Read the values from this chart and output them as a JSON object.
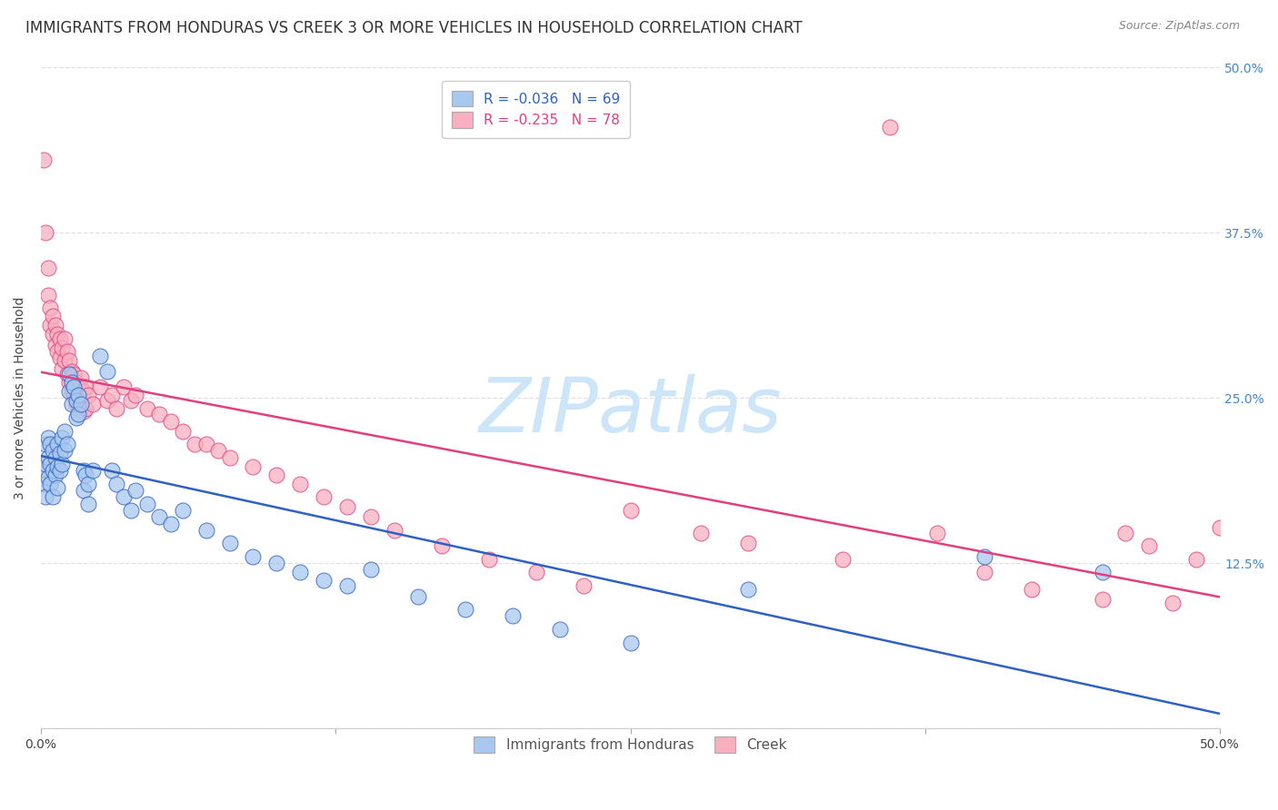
{
  "title": "IMMIGRANTS FROM HONDURAS VS CREEK 3 OR MORE VEHICLES IN HOUSEHOLD CORRELATION CHART",
  "source": "Source: ZipAtlas.com",
  "ylabel": "3 or more Vehicles in Household",
  "xlim": [
    0.0,
    0.5
  ],
  "ylim": [
    0.0,
    0.5
  ],
  "legend_label1": "R = -0.036   N = 69",
  "legend_label2": "R = -0.235   N = 78",
  "legend_bottom1": "Immigrants from Honduras",
  "legend_bottom2": "Creek",
  "color_blue": "#a8c8f0",
  "color_pink": "#f8b0c0",
  "line_blue": "#3060c0",
  "line_pink": "#e04080",
  "blue_points": [
    [
      0.001,
      0.195
    ],
    [
      0.001,
      0.185
    ],
    [
      0.002,
      0.215
    ],
    [
      0.002,
      0.2
    ],
    [
      0.002,
      0.175
    ],
    [
      0.003,
      0.22
    ],
    [
      0.003,
      0.205
    ],
    [
      0.003,
      0.19
    ],
    [
      0.004,
      0.215
    ],
    [
      0.004,
      0.2
    ],
    [
      0.004,
      0.185
    ],
    [
      0.005,
      0.21
    ],
    [
      0.005,
      0.195
    ],
    [
      0.005,
      0.175
    ],
    [
      0.006,
      0.205
    ],
    [
      0.006,
      0.192
    ],
    [
      0.007,
      0.215
    ],
    [
      0.007,
      0.198
    ],
    [
      0.007,
      0.182
    ],
    [
      0.008,
      0.208
    ],
    [
      0.008,
      0.195
    ],
    [
      0.009,
      0.22
    ],
    [
      0.009,
      0.2
    ],
    [
      0.01,
      0.225
    ],
    [
      0.01,
      0.21
    ],
    [
      0.011,
      0.215
    ],
    [
      0.012,
      0.268
    ],
    [
      0.012,
      0.255
    ],
    [
      0.013,
      0.262
    ],
    [
      0.013,
      0.245
    ],
    [
      0.014,
      0.258
    ],
    [
      0.015,
      0.248
    ],
    [
      0.015,
      0.235
    ],
    [
      0.016,
      0.252
    ],
    [
      0.016,
      0.238
    ],
    [
      0.017,
      0.245
    ],
    [
      0.018,
      0.195
    ],
    [
      0.018,
      0.18
    ],
    [
      0.019,
      0.192
    ],
    [
      0.02,
      0.185
    ],
    [
      0.02,
      0.17
    ],
    [
      0.022,
      0.195
    ],
    [
      0.025,
      0.282
    ],
    [
      0.028,
      0.27
    ],
    [
      0.03,
      0.195
    ],
    [
      0.032,
      0.185
    ],
    [
      0.035,
      0.175
    ],
    [
      0.038,
      0.165
    ],
    [
      0.04,
      0.18
    ],
    [
      0.045,
      0.17
    ],
    [
      0.05,
      0.16
    ],
    [
      0.055,
      0.155
    ],
    [
      0.06,
      0.165
    ],
    [
      0.07,
      0.15
    ],
    [
      0.08,
      0.14
    ],
    [
      0.09,
      0.13
    ],
    [
      0.1,
      0.125
    ],
    [
      0.11,
      0.118
    ],
    [
      0.12,
      0.112
    ],
    [
      0.13,
      0.108
    ],
    [
      0.14,
      0.12
    ],
    [
      0.16,
      0.1
    ],
    [
      0.18,
      0.09
    ],
    [
      0.2,
      0.085
    ],
    [
      0.22,
      0.075
    ],
    [
      0.25,
      0.065
    ],
    [
      0.3,
      0.105
    ],
    [
      0.4,
      0.13
    ],
    [
      0.45,
      0.118
    ]
  ],
  "pink_points": [
    [
      0.001,
      0.43
    ],
    [
      0.002,
      0.375
    ],
    [
      0.003,
      0.348
    ],
    [
      0.003,
      0.328
    ],
    [
      0.004,
      0.318
    ],
    [
      0.004,
      0.305
    ],
    [
      0.005,
      0.312
    ],
    [
      0.005,
      0.298
    ],
    [
      0.006,
      0.305
    ],
    [
      0.006,
      0.29
    ],
    [
      0.007,
      0.298
    ],
    [
      0.007,
      0.285
    ],
    [
      0.008,
      0.295
    ],
    [
      0.008,
      0.28
    ],
    [
      0.009,
      0.288
    ],
    [
      0.009,
      0.272
    ],
    [
      0.01,
      0.295
    ],
    [
      0.01,
      0.278
    ],
    [
      0.011,
      0.285
    ],
    [
      0.011,
      0.268
    ],
    [
      0.012,
      0.278
    ],
    [
      0.012,
      0.262
    ],
    [
      0.013,
      0.27
    ],
    [
      0.013,
      0.255
    ],
    [
      0.014,
      0.268
    ],
    [
      0.014,
      0.252
    ],
    [
      0.015,
      0.262
    ],
    [
      0.015,
      0.245
    ],
    [
      0.016,
      0.258
    ],
    [
      0.016,
      0.242
    ],
    [
      0.017,
      0.265
    ],
    [
      0.017,
      0.248
    ],
    [
      0.018,
      0.255
    ],
    [
      0.018,
      0.24
    ],
    [
      0.019,
      0.258
    ],
    [
      0.019,
      0.242
    ],
    [
      0.02,
      0.252
    ],
    [
      0.022,
      0.245
    ],
    [
      0.025,
      0.258
    ],
    [
      0.028,
      0.248
    ],
    [
      0.03,
      0.252
    ],
    [
      0.032,
      0.242
    ],
    [
      0.035,
      0.258
    ],
    [
      0.038,
      0.248
    ],
    [
      0.04,
      0.252
    ],
    [
      0.045,
      0.242
    ],
    [
      0.05,
      0.238
    ],
    [
      0.055,
      0.232
    ],
    [
      0.06,
      0.225
    ],
    [
      0.065,
      0.215
    ],
    [
      0.07,
      0.215
    ],
    [
      0.075,
      0.21
    ],
    [
      0.08,
      0.205
    ],
    [
      0.09,
      0.198
    ],
    [
      0.1,
      0.192
    ],
    [
      0.11,
      0.185
    ],
    [
      0.12,
      0.175
    ],
    [
      0.13,
      0.168
    ],
    [
      0.14,
      0.16
    ],
    [
      0.15,
      0.15
    ],
    [
      0.17,
      0.138
    ],
    [
      0.19,
      0.128
    ],
    [
      0.21,
      0.118
    ],
    [
      0.23,
      0.108
    ],
    [
      0.25,
      0.165
    ],
    [
      0.28,
      0.148
    ],
    [
      0.3,
      0.14
    ],
    [
      0.34,
      0.128
    ],
    [
      0.36,
      0.455
    ],
    [
      0.38,
      0.148
    ],
    [
      0.4,
      0.118
    ],
    [
      0.42,
      0.105
    ],
    [
      0.45,
      0.098
    ],
    [
      0.46,
      0.148
    ],
    [
      0.47,
      0.138
    ],
    [
      0.48,
      0.095
    ],
    [
      0.49,
      0.128
    ],
    [
      0.5,
      0.152
    ]
  ],
  "grid_color": "#e0e0e0",
  "background_color": "#ffffff",
  "title_fontsize": 12,
  "axis_label_fontsize": 10,
  "tick_fontsize": 10,
  "watermark_text": "ZIPatlas",
  "watermark_color": "#cce5f8",
  "watermark_fontsize": 60
}
